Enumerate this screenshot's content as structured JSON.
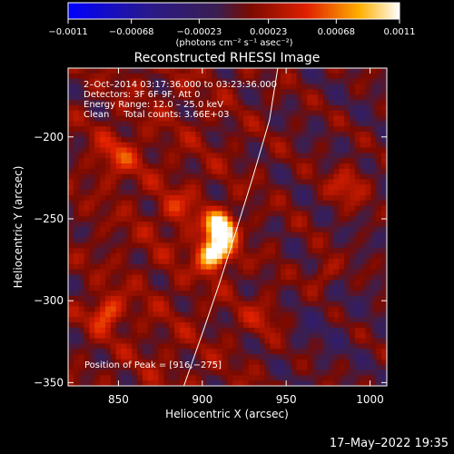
{
  "chart_data": {
    "type": "heatmap",
    "title": "Reconstructed RHESSI Image",
    "xlabel": "Heliocentric X (arcsec)",
    "ylabel": "Heliocentric Y (arcsec)",
    "xlim": [
      820,
      1010
    ],
    "ylim": [
      -352,
      -158
    ],
    "xticks": [
      850,
      900,
      950,
      1000
    ],
    "yticks": [
      -350,
      -300,
      -250,
      -200
    ],
    "xtick_labels": [
      "850",
      "900",
      "950",
      "1000"
    ],
    "ytick_labels": [
      "−350",
      "−300",
      "−250",
      "−200"
    ],
    "colorbar": {
      "range": [
        -0.0011,
        0.0011
      ],
      "ticks": [
        -0.0011,
        -0.00068,
        -0.00023,
        0.00023,
        0.00068,
        0.0011
      ],
      "tick_labels": [
        "−0.0011",
        "−0.00068",
        "−0.00023",
        "0.00023",
        "0.00068",
        "0.0011"
      ],
      "unit_label": "(photons cm⁻² s⁻¹ asec⁻²)"
    },
    "annotations": {
      "time": "2–Oct–2014 03:17:36.000 to 03:23:36.000",
      "detectors": "Detectors: 3F 6F 9F, Att 0",
      "energy": "Energy Range: 12.0 – 25.0 keV",
      "clean": "Clean     Total counts: 3.66E+03",
      "peak": "Position of Peak = [916,−275]"
    },
    "peak": {
      "x": 916,
      "y": -275
    },
    "limb": [
      [
        889,
        -352
      ],
      [
        900,
        -320
      ],
      [
        910,
        -290
      ],
      [
        920,
        -258
      ],
      [
        930,
        -225
      ],
      [
        940,
        -190
      ],
      [
        945,
        -158
      ]
    ]
  },
  "footer": {
    "date": "17–May–2022 19:35"
  }
}
